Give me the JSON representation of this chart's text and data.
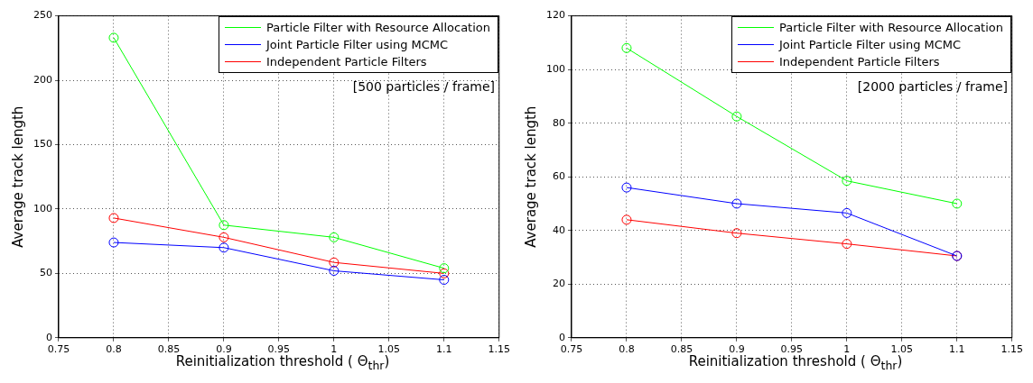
{
  "chart_data": [
    {
      "type": "line",
      "xlabel": "Reinitialization threshold ( Θ$_{thr}$)",
      "ylabel": "Average track length",
      "annotations": [
        "[500 particles / frame]"
      ],
      "x": [
        0.8,
        0.9,
        1,
        1.1
      ],
      "xlim": [
        0.75,
        1.15
      ],
      "xticks": [
        0.75,
        0.8,
        0.85,
        0.9,
        0.95,
        1,
        1.05,
        1.1,
        1.15
      ],
      "ylim": [
        0,
        250
      ],
      "yticks": [
        0,
        50,
        100,
        150,
        200,
        250
      ],
      "grid": true,
      "legend": "top right",
      "marker": "circle",
      "line_style": "solid",
      "series": [
        {
          "name": "Particle Filter with Resource Allocation",
          "color": "#00ff00",
          "values": [
            233,
            87.5,
            78,
            54
          ]
        },
        {
          "name": "Joint Particle Filter using MCMC",
          "color": "#0000ff",
          "values": [
            74,
            70,
            52,
            45
          ]
        },
        {
          "name": "Independent Particle Filters",
          "color": "#ff0000",
          "values": [
            93,
            78,
            58.5,
            50
          ]
        }
      ]
    },
    {
      "type": "line",
      "xlabel": "Reinitialization threshold ( Θ$_{thr}$)",
      "ylabel": "Average track length",
      "annotations": [
        "[2000 particles / frame]"
      ],
      "x": [
        0.8,
        0.9,
        1,
        1.1
      ],
      "xlim": [
        0.75,
        1.15
      ],
      "xticks": [
        0.75,
        0.8,
        0.85,
        0.9,
        0.95,
        1,
        1.05,
        1.1,
        1.15
      ],
      "ylim": [
        0,
        120
      ],
      "yticks": [
        0,
        20,
        40,
        60,
        80,
        100,
        120
      ],
      "grid": true,
      "legend": "top right",
      "marker": "circle",
      "line_style": "solid",
      "series": [
        {
          "name": "Particle Filter with Resource Allocation",
          "color": "#00ff00",
          "values": [
            108,
            82.5,
            58.5,
            50
          ]
        },
        {
          "name": "Joint Particle Filter using MCMC",
          "color": "#0000ff",
          "values": [
            56,
            50,
            46.5,
            30.5
          ]
        },
        {
          "name": "Independent Particle Filters",
          "color": "#ff0000",
          "values": [
            44,
            39,
            35,
            30.5
          ]
        }
      ]
    }
  ]
}
